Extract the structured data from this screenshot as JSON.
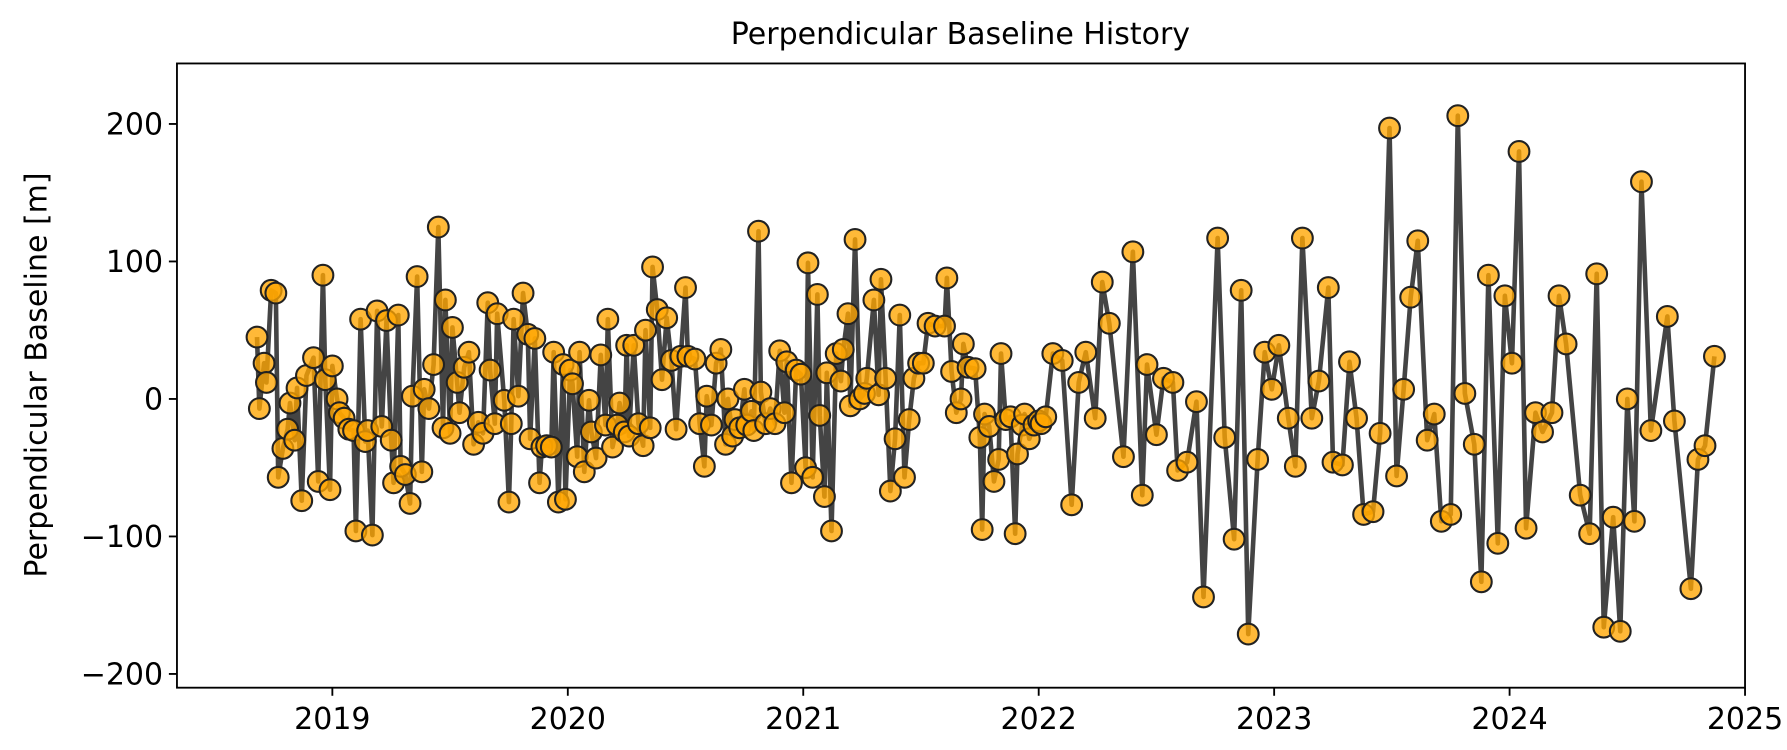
{
  "chart_data": {
    "type": "line",
    "title": "Perpendicular Baseline History",
    "ylabel": "Perpendicular Baseline [m]",
    "color": "#ffa500",
    "line_color": "#444444",
    "edge_color": "#222222",
    "xlim": [
      2018.34,
      2025
    ],
    "xticks": [
      2019,
      2020,
      2021,
      2022,
      2023,
      2024,
      2025
    ],
    "ylim": [
      -210,
      244
    ],
    "yticks": [
      {
        "value": -200,
        "label": "−200"
      },
      {
        "value": -100,
        "label": "−100"
      },
      0,
      100,
      200
    ],
    "x": [
      2018.68,
      2018.69,
      2018.71,
      2018.72,
      2018.74,
      2018.76,
      2018.77,
      2018.79,
      2018.81,
      2018.82,
      2018.84,
      2018.85,
      2018.87,
      2018.89,
      2018.92,
      2018.94,
      2018.96,
      2018.97,
      2018.99,
      2019.0,
      2019.02,
      2019.03,
      2019.05,
      2019.07,
      2019.09,
      2019.1,
      2019.12,
      2019.14,
      2019.15,
      2019.17,
      2019.19,
      2019.21,
      2019.23,
      2019.25,
      2019.26,
      2019.28,
      2019.29,
      2019.31,
      2019.33,
      2019.34,
      2019.36,
      2019.38,
      2019.39,
      2019.41,
      2019.43,
      2019.45,
      2019.47,
      2019.48,
      2019.5,
      2019.51,
      2019.53,
      2019.54,
      2019.56,
      2019.58,
      2019.6,
      2019.62,
      2019.64,
      2019.66,
      2019.67,
      2019.69,
      2019.7,
      2019.73,
      2019.75,
      2019.76,
      2019.77,
      2019.79,
      2019.81,
      2019.83,
      2019.84,
      2019.86,
      2019.88,
      2019.89,
      2019.91,
      2019.93,
      2019.94,
      2019.96,
      2019.98,
      2019.99,
      2020.01,
      2020.02,
      2020.04,
      2020.05,
      2020.07,
      2020.09,
      2020.1,
      2020.12,
      2020.14,
      2020.16,
      2020.17,
      2020.19,
      2020.21,
      2020.22,
      2020.24,
      2020.25,
      2020.26,
      2020.28,
      2020.3,
      2020.32,
      2020.33,
      2020.35,
      2020.36,
      2020.38,
      2020.4,
      2020.42,
      2020.44,
      2020.46,
      2020.48,
      2020.5,
      2020.51,
      2020.54,
      2020.56,
      2020.58,
      2020.59,
      2020.61,
      2020.63,
      2020.65,
      2020.67,
      2020.68,
      2020.7,
      2020.71,
      2020.73,
      2020.75,
      2020.76,
      2020.78,
      2020.79,
      2020.81,
      2020.82,
      2020.84,
      2020.86,
      2020.88,
      2020.9,
      2020.92,
      2020.93,
      2020.95,
      2020.97,
      2020.99,
      2021.01,
      2021.02,
      2021.04,
      2021.06,
      2021.07,
      2021.09,
      2021.1,
      2021.12,
      2021.14,
      2021.16,
      2021.17,
      2021.19,
      2021.2,
      2021.22,
      2021.24,
      2021.26,
      2021.27,
      2021.3,
      2021.32,
      2021.33,
      2021.35,
      2021.37,
      2021.39,
      2021.41,
      2021.43,
      2021.45,
      2021.47,
      2021.49,
      2021.51,
      2021.53,
      2021.56,
      2021.6,
      2021.61,
      2021.63,
      2021.65,
      2021.67,
      2021.68,
      2021.7,
      2021.73,
      2021.75,
      2021.76,
      2021.77,
      2021.79,
      2021.81,
      2021.83,
      2021.84,
      2021.86,
      2021.88,
      2021.9,
      2021.91,
      2021.93,
      2021.94,
      2021.96,
      2021.98,
      2022.0,
      2022.01,
      2022.03,
      2022.06,
      2022.1,
      2022.14,
      2022.17,
      2022.2,
      2022.24,
      2022.27,
      2022.3,
      2022.36,
      2022.4,
      2022.44,
      2022.46,
      2022.5,
      2022.53,
      2022.57,
      2022.59,
      2022.63,
      2022.67,
      2022.7,
      2022.76,
      2022.79,
      2022.83,
      2022.86,
      2022.89,
      2022.93,
      2022.96,
      2022.99,
      2023.02,
      2023.06,
      2023.09,
      2023.12,
      2023.16,
      2023.19,
      2023.23,
      2023.25,
      2023.29,
      2023.32,
      2023.35,
      2023.38,
      2023.42,
      2023.45,
      2023.49,
      2023.52,
      2023.55,
      2023.58,
      2023.61,
      2023.65,
      2023.68,
      2023.71,
      2023.75,
      2023.78,
      2023.81,
      2023.85,
      2023.88,
      2023.91,
      2023.95,
      2023.98,
      2024.01,
      2024.04,
      2024.07,
      2024.11,
      2024.14,
      2024.18,
      2024.21,
      2024.24,
      2024.3,
      2024.34,
      2024.37,
      2024.4,
      2024.44,
      2024.47,
      2024.5,
      2024.53,
      2024.56,
      2024.6,
      2024.67,
      2024.7,
      2024.77,
      2024.8,
      2024.83,
      2024.87
    ],
    "values": [
      45,
      -7,
      26,
      12,
      79,
      77,
      -57,
      -36,
      -22,
      -3,
      -30,
      8,
      -74,
      17,
      30,
      -60,
      90,
      14,
      -66,
      24,
      0,
      -10,
      -14,
      -22,
      -23,
      -96,
      58,
      -31,
      -23,
      -99,
      64,
      -20,
      57,
      -30,
      -61,
      61,
      -49,
      -55,
      -76,
      2,
      89,
      -53,
      7,
      -7,
      25,
      125,
      -21,
      72,
      -25,
      52,
      12,
      -10,
      23,
      34,
      -33,
      -17,
      -25,
      70,
      21,
      -18,
      62,
      -1,
      -75,
      -18,
      58,
      2,
      77,
      47,
      -29,
      44,
      -61,
      -35,
      -34,
      -35,
      34,
      -75,
      25,
      -73,
      21,
      11,
      -42,
      34,
      -53,
      -1,
      -24,
      -43,
      32,
      -19,
      58,
      -35,
      -19,
      -3,
      -24,
      39,
      -27,
      39,
      -18,
      -34,
      50,
      -21,
      96,
      65,
      14,
      59,
      28,
      -22,
      31,
      81,
      31,
      29,
      -18,
      -49,
      2,
      -19,
      26,
      36,
      -33,
      0,
      -27,
      -15,
      -21,
      7,
      -19,
      -9,
      -23,
      122,
      5,
      -18,
      -7,
      -18,
      35,
      -10,
      27,
      -61,
      21,
      18,
      -50,
      99,
      -57,
      76,
      -12,
      -71,
      19,
      -96,
      33,
      13,
      36,
      62,
      -5,
      116,
      0,
      4,
      15,
      72,
      3,
      87,
      15,
      -67,
      -29,
      61,
      -57,
      -15,
      15,
      26,
      26,
      55,
      53,
      53,
      88,
      20,
      -10,
      0,
      40,
      23,
      22,
      -28,
      -95,
      -11,
      -20,
      -60,
      -44,
      33,
      -15,
      -13,
      -98,
      -40,
      -19,
      -11,
      -29,
      -19,
      -16,
      -18,
      -13,
      33,
      28,
      -77,
      12,
      34,
      -14,
      85,
      55,
      -42,
      107,
      -70,
      25,
      -26,
      15,
      12,
      -52,
      -46,
      -2,
      -144,
      117,
      -28,
      -102,
      79,
      -171,
      -44,
      34,
      7,
      39,
      -14,
      -49,
      117,
      -14,
      13,
      81,
      -46,
      -48,
      27,
      -14,
      -84,
      -82,
      -25,
      197,
      -56,
      7,
      74,
      115,
      -30,
      -11,
      -89,
      -84,
      206,
      4,
      -33,
      -133,
      90,
      -105,
      75,
      26,
      180,
      -94,
      -10,
      -24,
      -10,
      75,
      40,
      -70,
      -98,
      91,
      -166,
      -86,
      -169,
      0,
      -89,
      158,
      -23,
      60,
      -16,
      -138,
      -44,
      -34,
      31
    ]
  }
}
